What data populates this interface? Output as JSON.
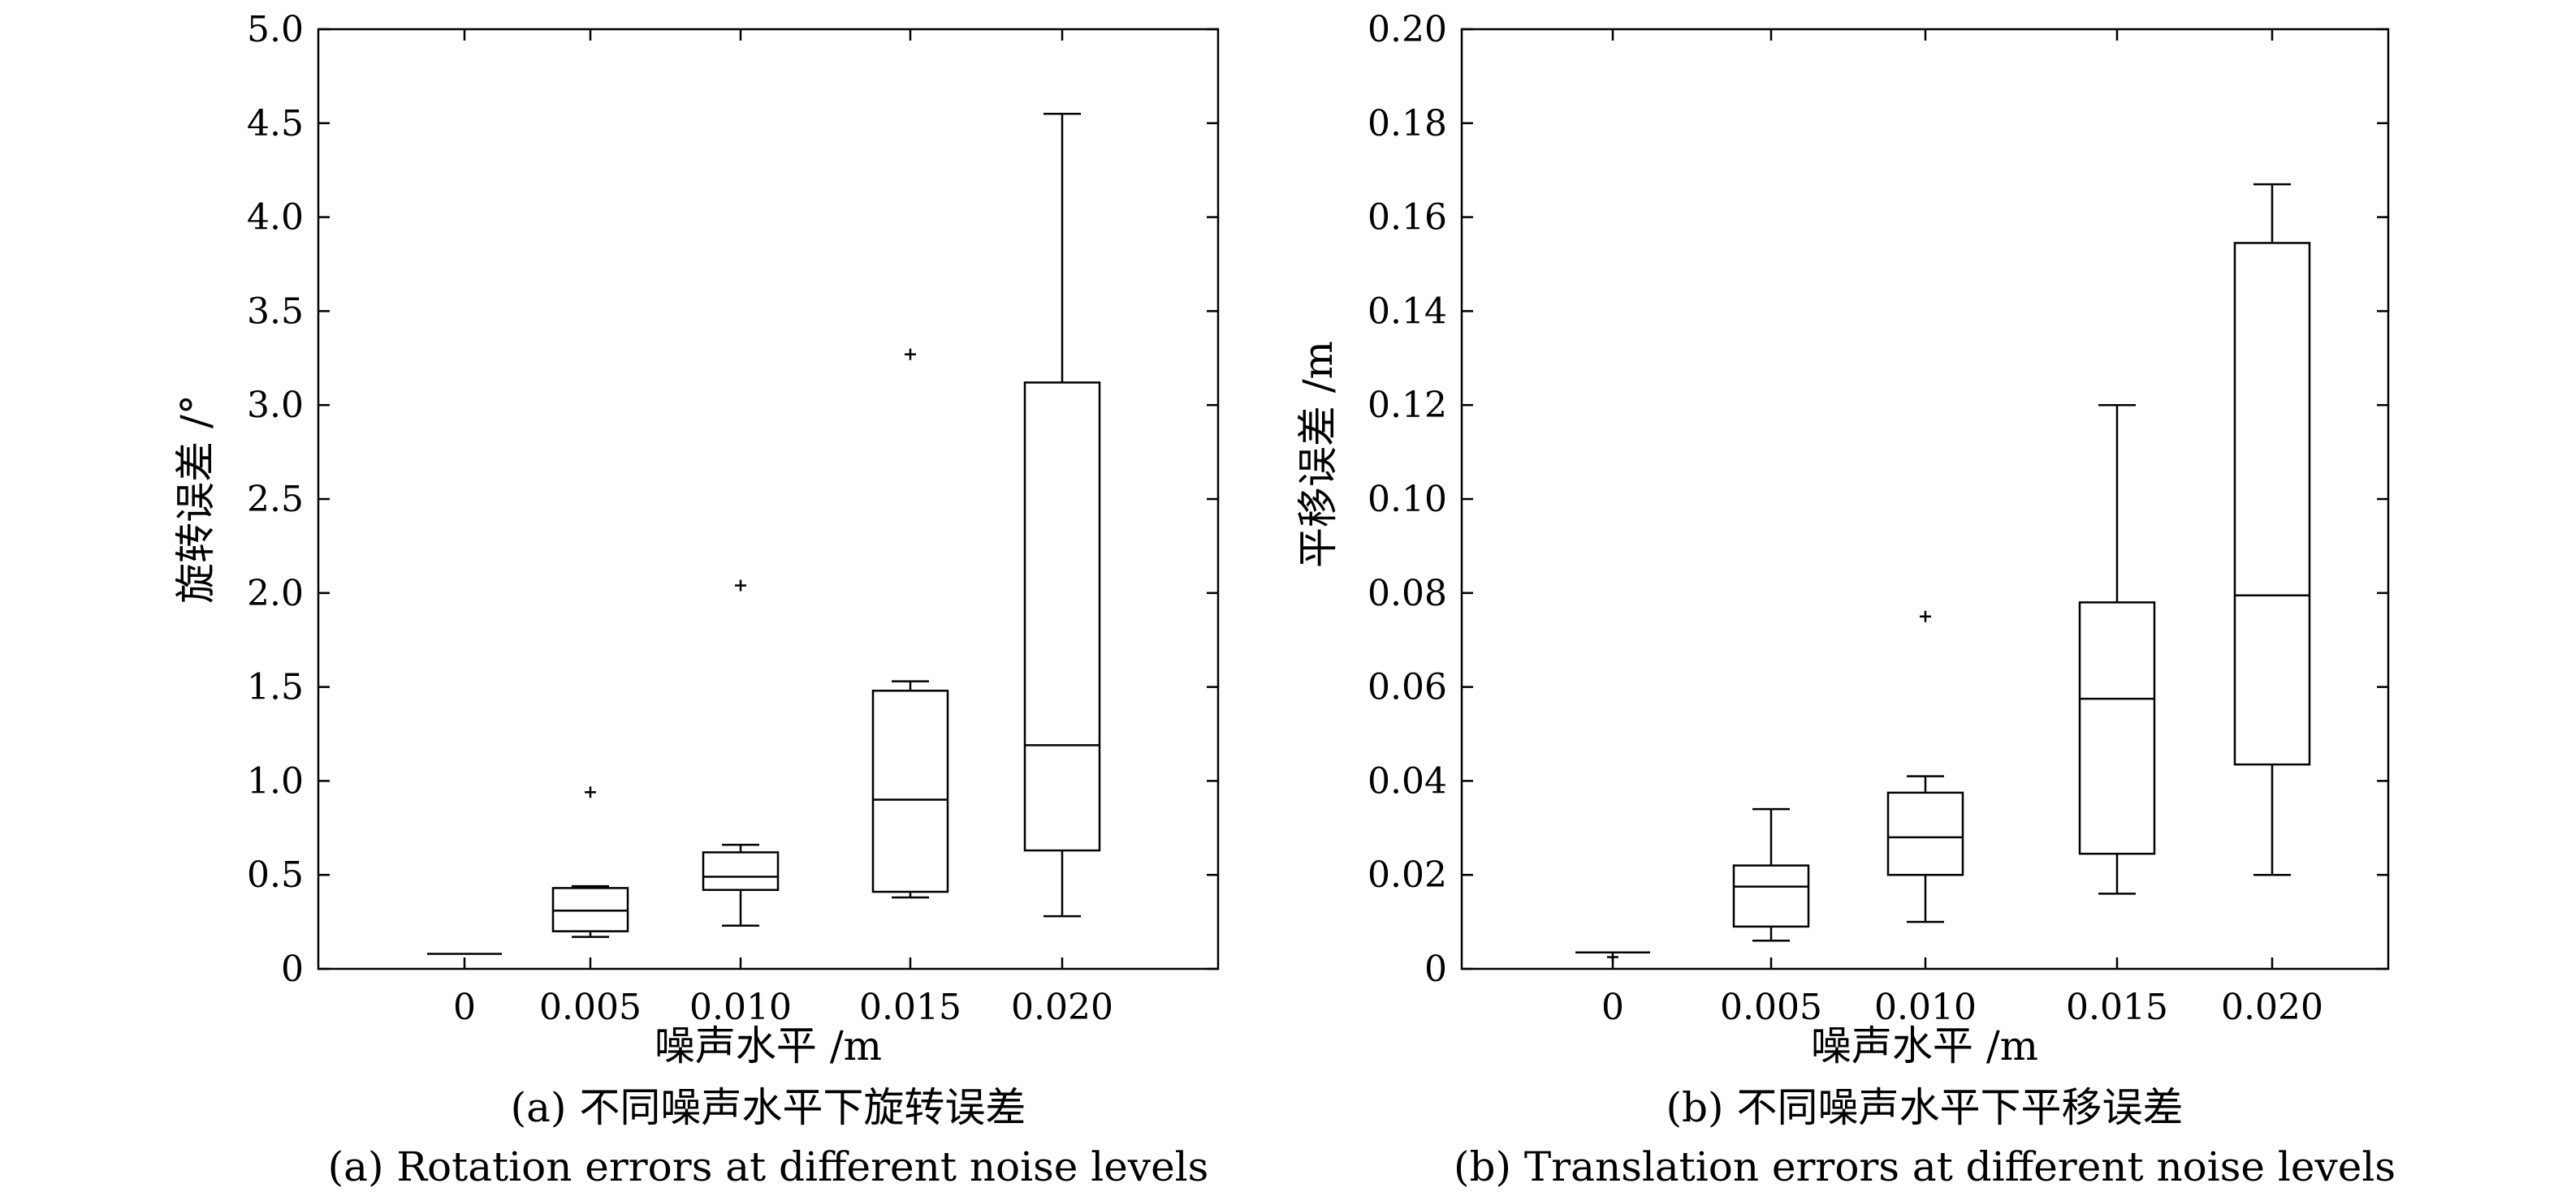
{
  "chart_data": [
    {
      "id": "a",
      "type": "boxplot",
      "xlabel": "噪声水平 /m",
      "ylabel": "旋转误差 /°",
      "caption_cn": "(a) 不同噪声水平下旋转误差",
      "caption_en": "(a) Rotation errors at different noise levels",
      "ylim": [
        0,
        5.0
      ],
      "yticks": [
        {
          "value": 0,
          "label": "0"
        },
        {
          "value": 0.5,
          "label": "0.5"
        },
        {
          "value": 1.0,
          "label": "1.0"
        },
        {
          "value": 1.5,
          "label": "1.5"
        },
        {
          "value": 2.0,
          "label": "2.0"
        },
        {
          "value": 2.5,
          "label": "2.5"
        },
        {
          "value": 3.0,
          "label": "3.0"
        },
        {
          "value": 3.5,
          "label": "3.5"
        },
        {
          "value": 4.0,
          "label": "4.0"
        },
        {
          "value": 4.5,
          "label": "4.5"
        },
        {
          "value": 5.0,
          "label": "5.0"
        }
      ],
      "categories": [
        "0",
        "0.005",
        "0.010",
        "0.015",
        "0.020"
      ],
      "boxes": [
        {
          "category": "0",
          "whisker_low": 0.08,
          "q1": 0.08,
          "median": 0.08,
          "q3": 0.08,
          "whisker_high": 0.08,
          "outliers": []
        },
        {
          "category": "0.005",
          "whisker_low": 0.17,
          "q1": 0.2,
          "median": 0.31,
          "q3": 0.43,
          "whisker_high": 0.44,
          "outliers": [
            0.94
          ]
        },
        {
          "category": "0.010",
          "whisker_low": 0.23,
          "q1": 0.42,
          "median": 0.49,
          "q3": 0.62,
          "whisker_high": 0.66,
          "outliers": [
            2.04
          ]
        },
        {
          "category": "0.015",
          "whisker_low": 0.38,
          "q1": 0.41,
          "median": 0.9,
          "q3": 1.48,
          "whisker_high": 1.53,
          "outliers": [
            3.27
          ]
        },
        {
          "category": "0.020",
          "whisker_low": 0.28,
          "q1": 0.63,
          "median": 1.19,
          "q3": 3.12,
          "whisker_high": 4.55,
          "outliers": []
        }
      ]
    },
    {
      "id": "b",
      "type": "boxplot",
      "xlabel": "噪声水平 /m",
      "ylabel": "平移误差 /m",
      "caption_cn": "(b) 不同噪声水平下平移误差",
      "caption_en": "(b) Translation errors at different noise levels",
      "ylim": [
        0,
        0.2
      ],
      "yticks": [
        {
          "value": 0,
          "label": "0"
        },
        {
          "value": 0.02,
          "label": "0.02"
        },
        {
          "value": 0.04,
          "label": "0.04"
        },
        {
          "value": 0.06,
          "label": "0.06"
        },
        {
          "value": 0.08,
          "label": "0.08"
        },
        {
          "value": 0.1,
          "label": "0.10"
        },
        {
          "value": 0.12,
          "label": "0.12"
        },
        {
          "value": 0.14,
          "label": "0.14"
        },
        {
          "value": 0.16,
          "label": "0.16"
        },
        {
          "value": 0.18,
          "label": "0.18"
        },
        {
          "value": 0.2,
          "label": "0.20"
        }
      ],
      "categories": [
        "0",
        "0.005",
        "0.010",
        "0.015",
        "0.020"
      ],
      "boxes": [
        {
          "category": "0",
          "whisker_low": 0.0035,
          "q1": 0.0035,
          "median": 0.0035,
          "q3": 0.0035,
          "whisker_high": 0.0035,
          "outliers": [
            0.0025
          ]
        },
        {
          "category": "0.005",
          "whisker_low": 0.006,
          "q1": 0.009,
          "median": 0.0175,
          "q3": 0.022,
          "whisker_high": 0.034,
          "outliers": []
        },
        {
          "category": "0.010",
          "whisker_low": 0.01,
          "q1": 0.02,
          "median": 0.028,
          "q3": 0.0375,
          "whisker_high": 0.041,
          "outliers": [
            0.075
          ]
        },
        {
          "category": "0.015",
          "whisker_low": 0.016,
          "q1": 0.0245,
          "median": 0.0575,
          "q3": 0.078,
          "whisker_high": 0.12,
          "outliers": []
        },
        {
          "category": "0.020",
          "whisker_low": 0.02,
          "q1": 0.0435,
          "median": 0.0795,
          "q3": 0.1545,
          "whisker_high": 0.167,
          "outliers": []
        }
      ]
    }
  ]
}
